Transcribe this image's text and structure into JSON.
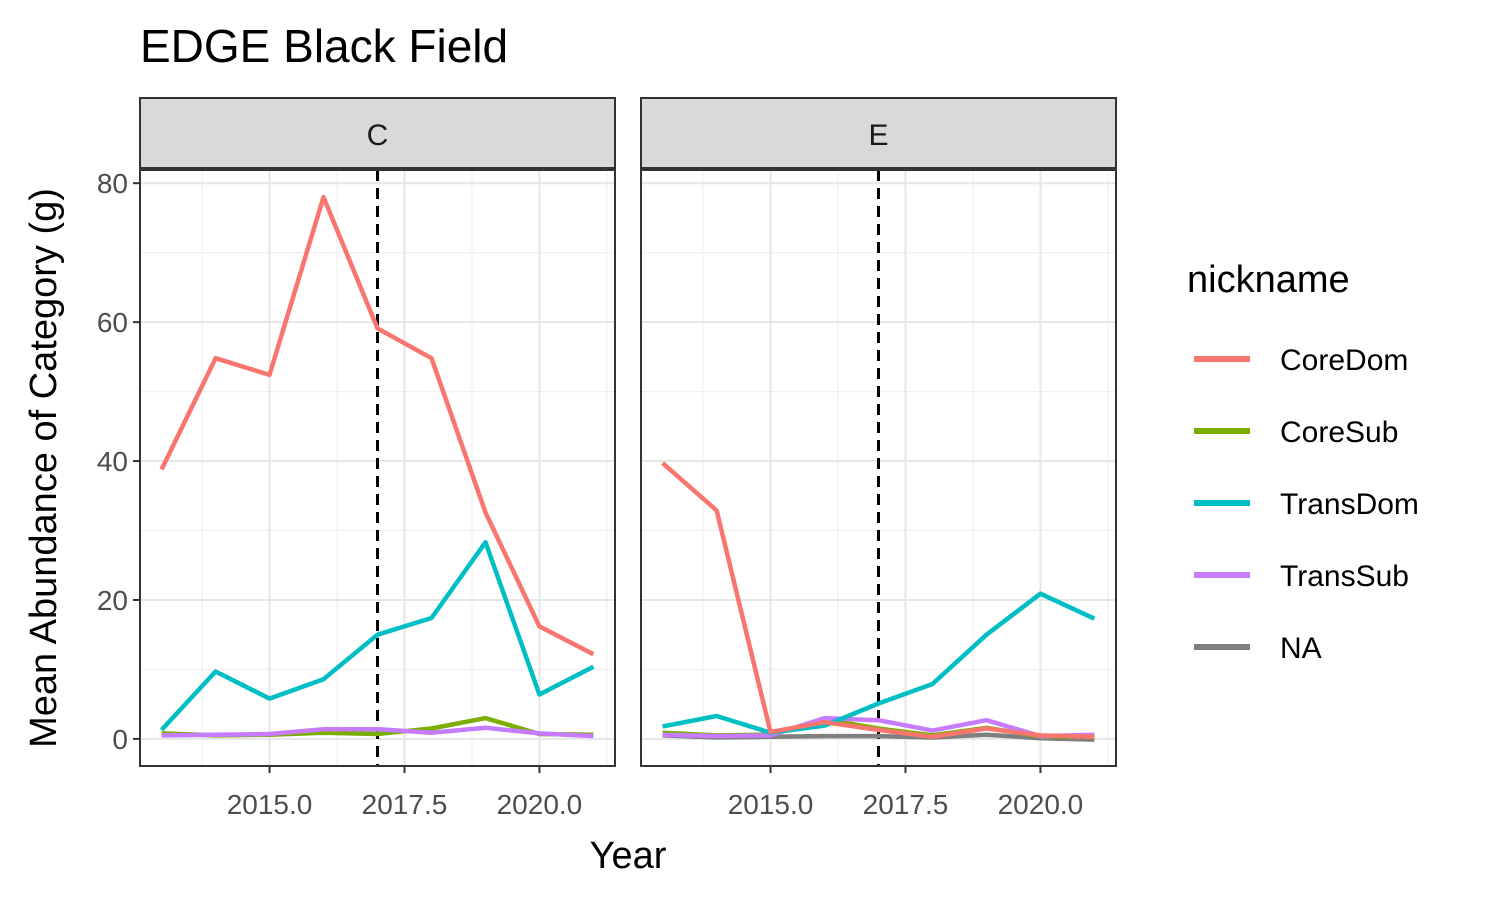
{
  "chart_data": {
    "type": "line",
    "title": "EDGE Black Field",
    "xlabel": "Year",
    "ylabel": "Mean Abundance of Category (g)",
    "xlim": [
      2012.6,
      2021.4
    ],
    "ylim": [
      -3.9,
      81.9
    ],
    "x_ticks": [
      2015.0,
      2017.5,
      2020.0
    ],
    "x_tick_labels": [
      "2015.0",
      "2017.5",
      "2020.0"
    ],
    "y_ticks": [
      0,
      20,
      40,
      60,
      80
    ],
    "y_tick_labels": [
      "0",
      "20",
      "40",
      "60",
      "80"
    ],
    "grid": true,
    "reference_line": {
      "x": 2017,
      "style": "dashed",
      "color": "#000000"
    },
    "legend": {
      "title": "nickname",
      "position": "right",
      "entries": [
        {
          "name": "CoreDom",
          "color": "#F8766D"
        },
        {
          "name": "CoreSub",
          "color": "#7CAE00"
        },
        {
          "name": "TransDom",
          "color": "#00BFC4"
        },
        {
          "name": "TransSub",
          "color": "#C77CFF"
        },
        {
          "name": "NA",
          "color": "#7F7F7F"
        }
      ]
    },
    "panels": [
      {
        "label": "C",
        "x": [
          2013,
          2014,
          2015,
          2016,
          2017,
          2018,
          2019,
          2020,
          2021
        ],
        "series": [
          {
            "name": "NA",
            "color": "#7F7F7F",
            "values": []
          },
          {
            "name": "CoreSub",
            "color": "#7CAE00",
            "values": [
              0.8,
              0.5,
              0.6,
              0.9,
              0.7,
              1.5,
              3.0,
              0.7,
              0.6
            ]
          },
          {
            "name": "TransSub",
            "color": "#C77CFF",
            "values": [
              0.5,
              0.6,
              0.7,
              1.4,
              1.4,
              0.9,
              1.6,
              0.8,
              0.4
            ]
          },
          {
            "name": "TransDom",
            "color": "#00BFC4",
            "values": [
              1.3,
              9.7,
              5.8,
              8.6,
              15.0,
              17.4,
              28.3,
              6.4,
              10.4
            ]
          },
          {
            "name": "CoreDom",
            "color": "#F8766D",
            "values": [
              38.8,
              54.8,
              52.4,
              78.0,
              59.1,
              54.8,
              32.6,
              16.2,
              12.2
            ]
          }
        ]
      },
      {
        "label": "E",
        "x": [
          2013,
          2014,
          2015,
          2016,
          2017,
          2018,
          2019,
          2020,
          2021
        ],
        "series": [
          {
            "name": "NA",
            "color": "#7F7F7F",
            "values": [
              0.5,
              0.2,
              0.3,
              0.4,
              0.4,
              0.2,
              0.6,
              0.1,
              -0.1
            ]
          },
          {
            "name": "CoreSub",
            "color": "#7CAE00",
            "values": [
              0.9,
              0.5,
              0.6,
              2.8,
              1.5,
              0.5,
              1.6,
              0.4,
              0.3
            ]
          },
          {
            "name": "TransSub",
            "color": "#C77CFF",
            "values": [
              0.6,
              0.4,
              0.5,
              3.0,
              2.7,
              1.2,
              2.7,
              0.4,
              0.6
            ]
          },
          {
            "name": "TransDom",
            "color": "#00BFC4",
            "values": [
              1.8,
              3.3,
              0.9,
              1.9,
              5.1,
              7.9,
              15.0,
              20.9,
              17.3
            ]
          },
          {
            "name": "CoreDom",
            "color": "#F8766D",
            "values": [
              39.7,
              32.9,
              1.0,
              2.4,
              1.3,
              0.3,
              1.5,
              0.5,
              0.3
            ]
          }
        ]
      }
    ]
  }
}
